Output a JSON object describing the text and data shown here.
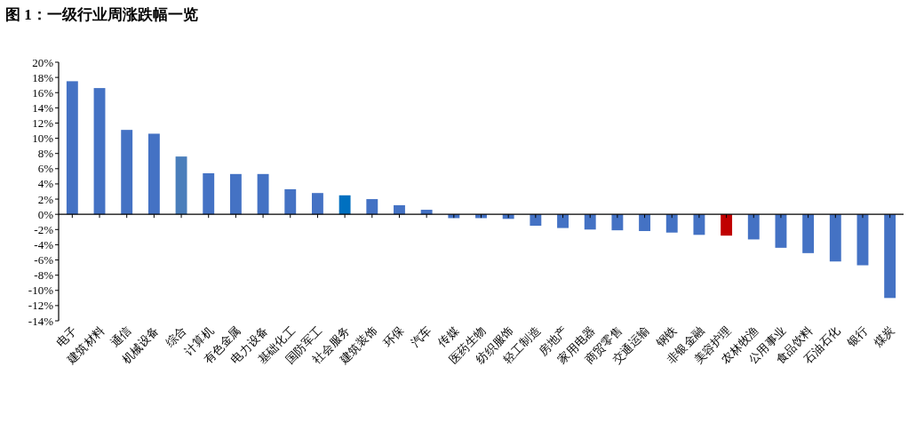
{
  "chart_data": {
    "type": "bar",
    "title": "图 1：一级行业周涨跌幅一览",
    "categories": [
      "电子",
      "建筑材料",
      "通信",
      "机械设备",
      "综合",
      "计算机",
      "有色金属",
      "电力设备",
      "基础化工",
      "国防军工",
      "社会服务",
      "建筑装饰",
      "环保",
      "汽车",
      "传媒",
      "医药生物",
      "纺织服饰",
      "轻工制造",
      "房地产",
      "家用电器",
      "商贸零售",
      "交通运输",
      "钢铁",
      "非银金融",
      "美容护理",
      "农林牧渔",
      "公用事业",
      "食品饮料",
      "石油石化",
      "银行",
      "煤炭"
    ],
    "values": [
      17.5,
      16.6,
      11.1,
      10.6,
      7.6,
      5.4,
      5.3,
      5.3,
      3.3,
      2.8,
      2.5,
      2.0,
      1.2,
      0.6,
      -0.5,
      -0.5,
      -0.6,
      -1.5,
      -1.8,
      -2.0,
      -2.1,
      -2.2,
      -2.4,
      -2.7,
      -2.8,
      -3.3,
      -4.4,
      -5.1,
      -6.2,
      -6.7,
      -11.0
    ],
    "colors": [
      "#4472c4",
      "#4472c4",
      "#4472c4",
      "#4472c4",
      "#4a7ebb",
      "#4472c4",
      "#4472c4",
      "#4472c4",
      "#4472c4",
      "#4472c4",
      "#0070c0",
      "#4472c4",
      "#4472c4",
      "#4472c4",
      "#4472c4",
      "#4472c4",
      "#4472c4",
      "#4472c4",
      "#4472c4",
      "#4472c4",
      "#4472c4",
      "#4472c4",
      "#4472c4",
      "#4472c4",
      "#c00000",
      "#4472c4",
      "#4472c4",
      "#4472c4",
      "#4472c4",
      "#4472c4",
      "#4472c4"
    ],
    "ylim": [
      -14,
      20
    ],
    "yticks": [
      {
        "value": 20,
        "label": "20%"
      },
      {
        "value": 18,
        "label": "18%"
      },
      {
        "value": 16,
        "label": "16%"
      },
      {
        "value": 14,
        "label": "14%"
      },
      {
        "value": 12,
        "label": "12%"
      },
      {
        "value": 10,
        "label": "10%"
      },
      {
        "value": 8,
        "label": "8%"
      },
      {
        "value": 6,
        "label": "6%"
      },
      {
        "value": 4,
        "label": "4%"
      },
      {
        "value": 2,
        "label": "2%"
      },
      {
        "value": 0,
        "label": "0%"
      },
      {
        "value": -2,
        "label": "-2%"
      },
      {
        "value": -4,
        "label": "-4%"
      },
      {
        "value": -6,
        "label": "-6%"
      },
      {
        "value": -8,
        "label": "-8%"
      },
      {
        "value": -10,
        "label": "-10%"
      },
      {
        "value": -12,
        "label": "-12%"
      },
      {
        "value": -14,
        "label": "-14%"
      }
    ],
    "orientation": "vertical"
  }
}
